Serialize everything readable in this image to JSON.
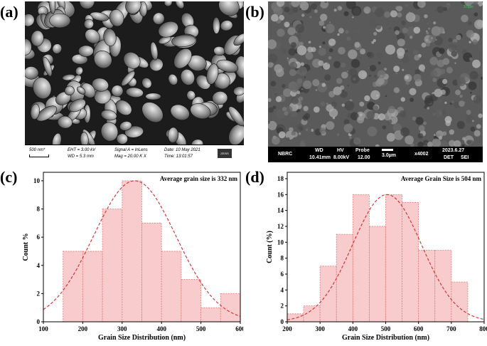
{
  "panel_labels": {
    "a": "(a)",
    "b": "(b)",
    "c": "(c)",
    "d": "(d)"
  },
  "sem_a": {
    "scale_bar": "500 nm*",
    "eht": "EHT = 3.00 kV",
    "wd": "WD = 5.3 mm",
    "signal": "Signal A = InLens",
    "mag": "Mag = 20.00 K X",
    "date": "Date: 10 May 2021",
    "time": "Time: 13:01:57",
    "logo": "ZEISS"
  },
  "sem_b": {
    "corner_scale": "3.0µm",
    "org": "NBRC",
    "wd_label": "WD",
    "wd_value": "10.41mm",
    "hv_label": "HV",
    "hv_value": "8.00kV",
    "probe_label": "Probe",
    "probe_value": "12.00",
    "scale": "3.0µm",
    "mag": "x4002",
    "date": "2023.6.27",
    "det_label": "DET",
    "det_value": "SEI"
  },
  "chart_data": [
    {
      "type": "bar",
      "panel": "c",
      "annotation": "Average grain size is 332 nm",
      "xlabel": "Grain Size Distribution (nm)",
      "ylabel": "Count %",
      "xlim": [
        100,
        600
      ],
      "ylim": [
        0,
        10.6
      ],
      "xticks": [
        100,
        200,
        300,
        400,
        500,
        600
      ],
      "yticks": [
        0,
        2,
        4,
        6,
        8,
        10
      ],
      "bins": [
        {
          "from": 150,
          "to": 200,
          "value": 5
        },
        {
          "from": 200,
          "to": 250,
          "value": 5
        },
        {
          "from": 250,
          "to": 300,
          "value": 8
        },
        {
          "from": 300,
          "to": 350,
          "value": 10
        },
        {
          "from": 350,
          "to": 400,
          "value": 7
        },
        {
          "from": 400,
          "to": 450,
          "value": 5
        },
        {
          "from": 450,
          "to": 500,
          "value": 3
        },
        {
          "from": 500,
          "to": 550,
          "value": 1
        },
        {
          "from": 550,
          "to": 600,
          "value": 2
        }
      ],
      "fit": {
        "mean": 332,
        "sigma": 105,
        "peak": 10
      },
      "bar_color": "#f8cccc",
      "edge_color": "#e07a7a",
      "fit_color": "#d62828"
    },
    {
      "type": "bar",
      "panel": "d",
      "annotation": "Average Grain Size is 504 nm",
      "xlabel": "Grain Size Distribution (nm)",
      "ylabel": "Count (%)",
      "xlim": [
        200,
        800
      ],
      "ylim": [
        0,
        18.8
      ],
      "xticks": [
        200,
        300,
        400,
        500,
        600,
        700,
        800
      ],
      "yticks": [
        0,
        2,
        4,
        6,
        8,
        10,
        12,
        14,
        16,
        18
      ],
      "bins": [
        {
          "from": 200,
          "to": 250,
          "value": 1
        },
        {
          "from": 250,
          "to": 300,
          "value": 2
        },
        {
          "from": 300,
          "to": 350,
          "value": 7
        },
        {
          "from": 350,
          "to": 400,
          "value": 11
        },
        {
          "from": 400,
          "to": 450,
          "value": 16
        },
        {
          "from": 450,
          "to": 500,
          "value": 12
        },
        {
          "from": 500,
          "to": 550,
          "value": 16
        },
        {
          "from": 550,
          "to": 600,
          "value": 15
        },
        {
          "from": 600,
          "to": 650,
          "value": 9
        },
        {
          "from": 650,
          "to": 700,
          "value": 9
        },
        {
          "from": 700,
          "to": 750,
          "value": 5
        }
      ],
      "fit": {
        "mean": 504,
        "sigma": 105,
        "peak": 16
      },
      "bar_color": "#f8cccc",
      "edge_color": "#e07a7a",
      "fit_color": "#d62828"
    }
  ]
}
